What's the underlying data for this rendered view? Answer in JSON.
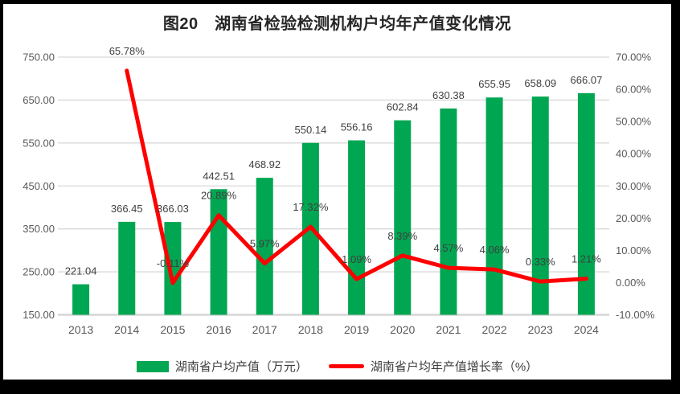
{
  "frame": {
    "background": "#000000",
    "panel_background": "#FFFFFF"
  },
  "chart_data": {
    "type": "combo-bar-line",
    "title": "图20　湖南省检验检测机构户均年产值变化情况",
    "categories": [
      "2013",
      "2014",
      "2015",
      "2016",
      "2017",
      "2018",
      "2019",
      "2020",
      "2021",
      "2022",
      "2023",
      "2024"
    ],
    "series": [
      {
        "name": "湖南省户均产值（万元）",
        "type": "bar",
        "axis": "left",
        "color": "#00A651",
        "values": [
          221.04,
          366.45,
          366.03,
          442.51,
          468.92,
          550.14,
          556.16,
          602.84,
          630.38,
          655.95,
          658.09,
          666.07
        ]
      },
      {
        "name": "湖南省户均年产值增长率（%）",
        "type": "line",
        "axis": "right",
        "color": "#FF0000",
        "values": [
          null,
          65.78,
          -0.11,
          20.89,
          5.97,
          17.32,
          1.09,
          8.39,
          4.57,
          4.06,
          0.33,
          1.21
        ]
      }
    ],
    "left_axis": {
      "min": 150,
      "max": 750,
      "step": 100,
      "tick_labels": [
        "150.00",
        "250.00",
        "350.00",
        "450.00",
        "550.00",
        "650.00",
        "750.00"
      ]
    },
    "right_axis": {
      "min": -10,
      "max": 70,
      "step": 10,
      "tick_labels": [
        "-10.00%",
        "0.00%",
        "10.00%",
        "20.00%",
        "30.00%",
        "40.00%",
        "50.00%",
        "60.00%",
        "70.00%"
      ]
    },
    "grid": true,
    "legend_position": "bottom",
    "colors": {
      "grid": "#D9D9D9",
      "baseline": "#D6D6D6",
      "tick_label": "#595959",
      "data_label": "#404040",
      "title": "#262626"
    }
  }
}
